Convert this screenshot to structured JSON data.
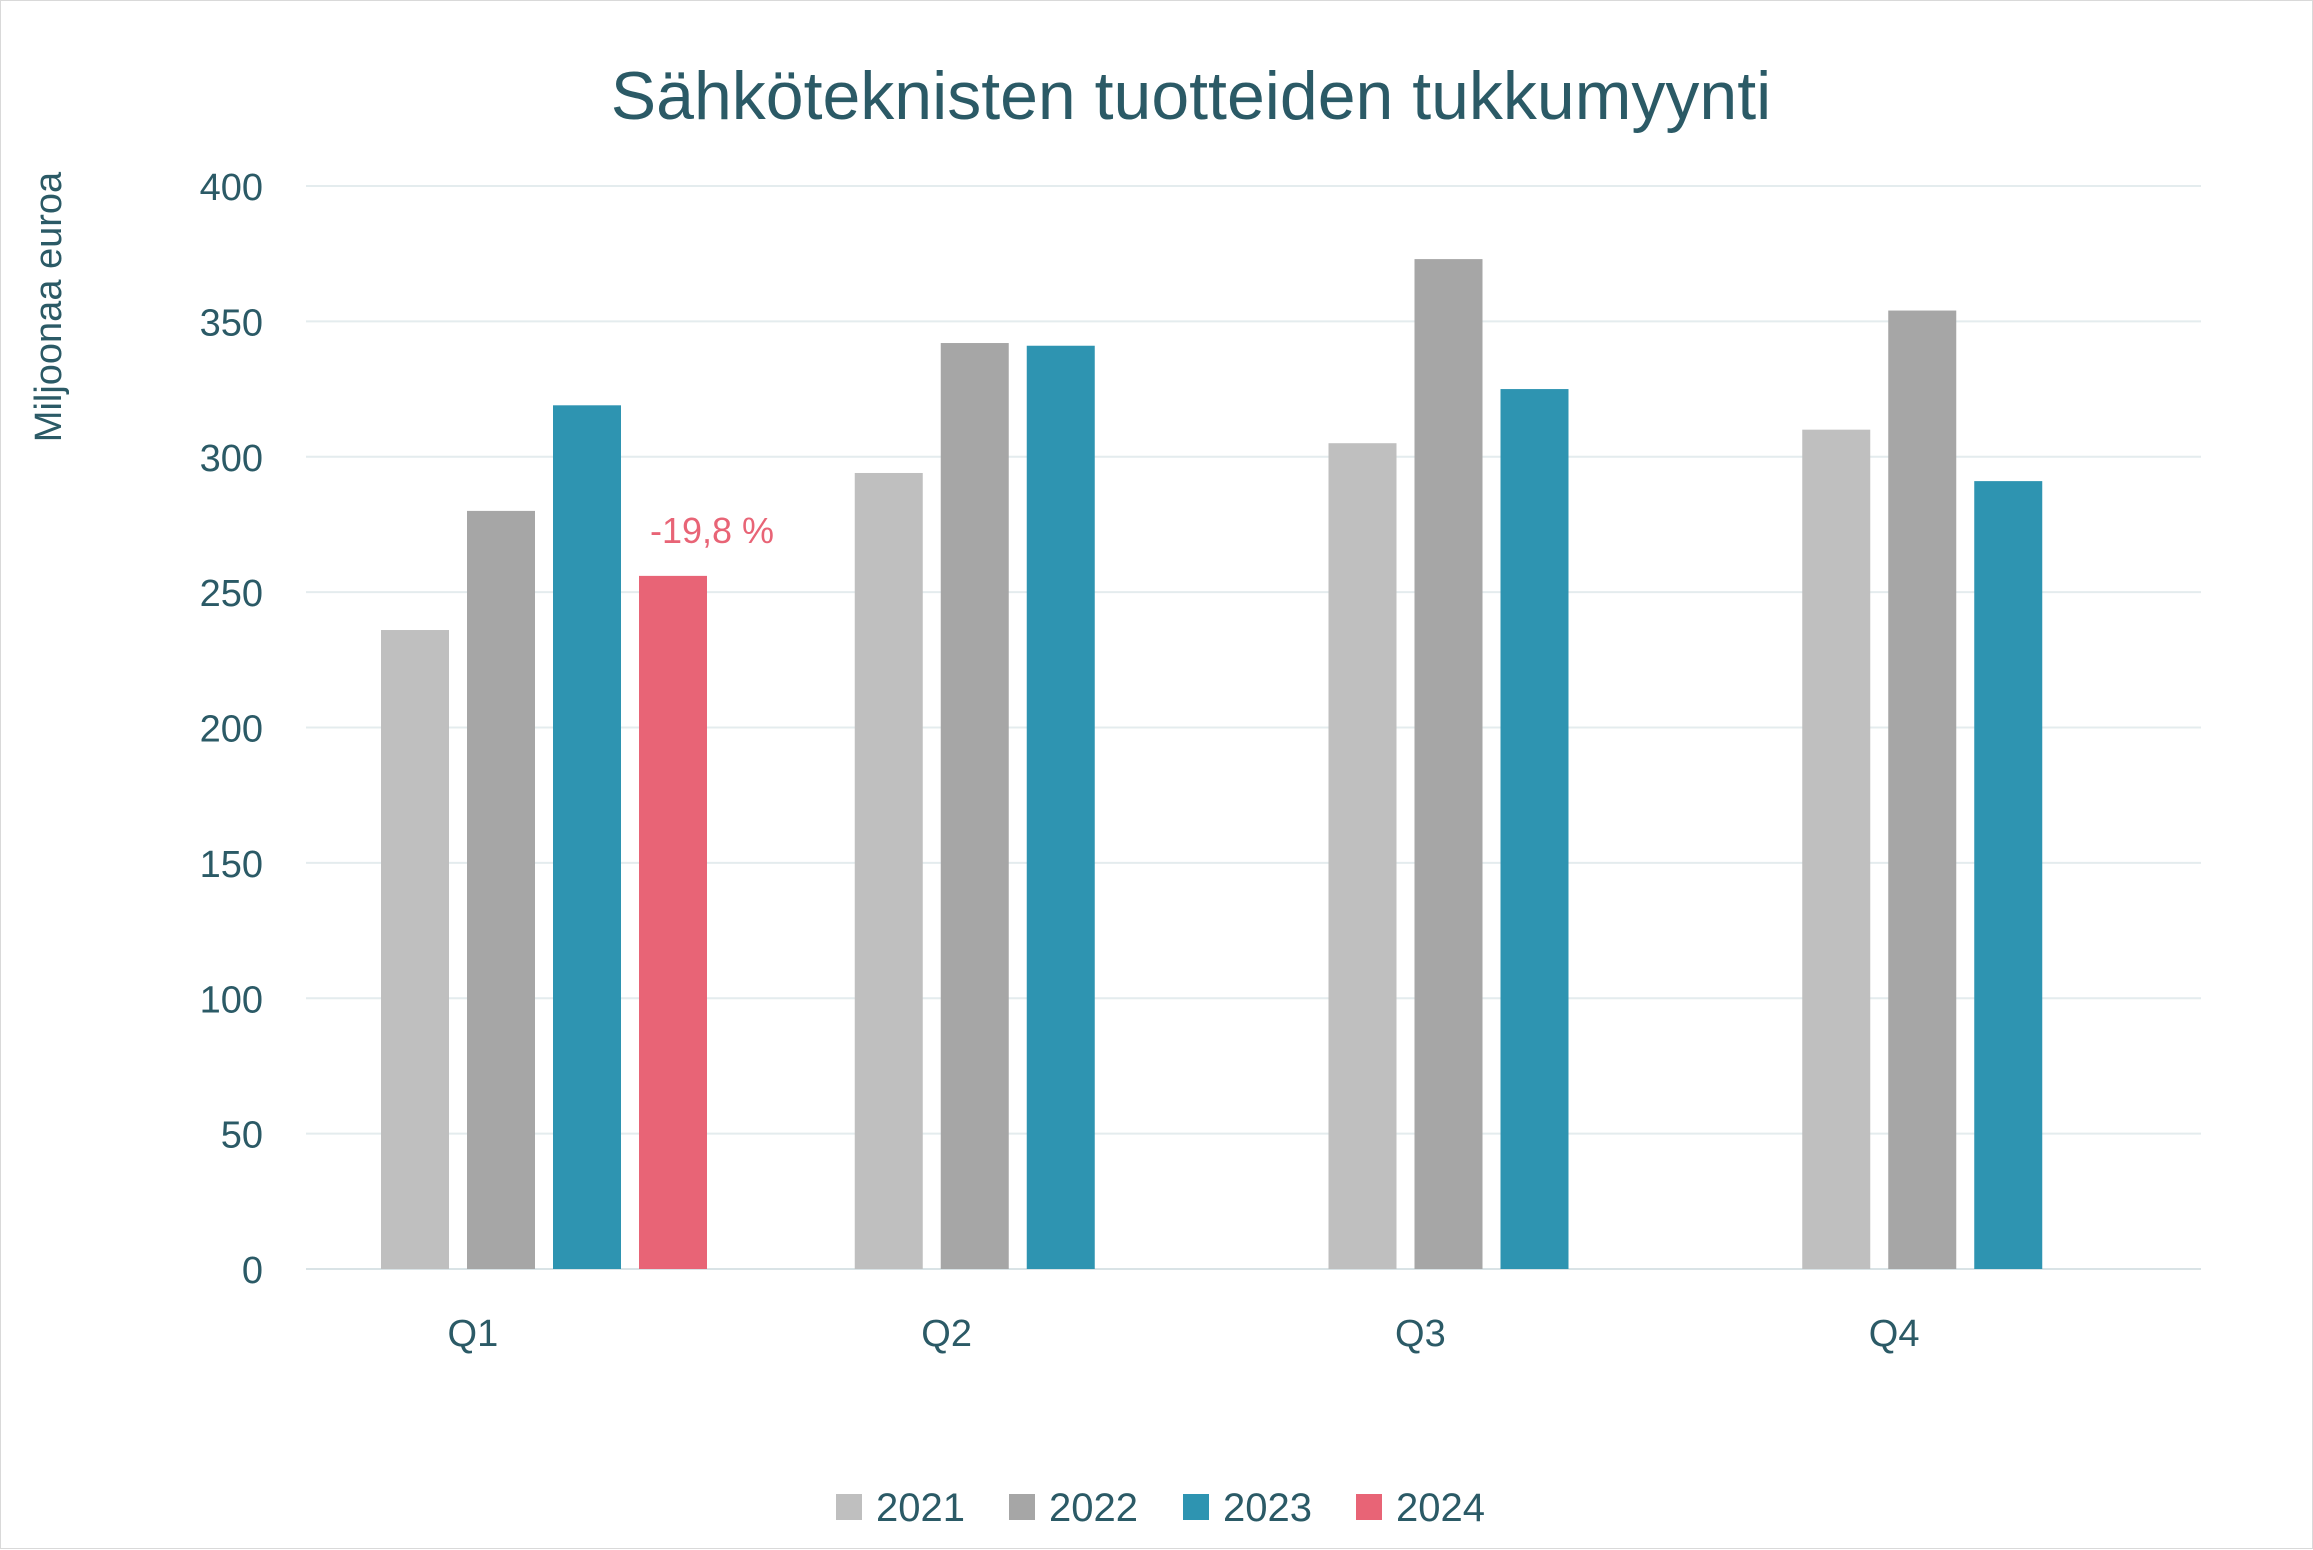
{
  "chart_data": {
    "type": "bar",
    "title": "Sähköteknisten tuotteiden tukkumyynti",
    "ylabel": "Miljoonaa euroa",
    "xlabel": "",
    "categories": [
      "Q1",
      "Q2",
      "Q3",
      "Q4"
    ],
    "ylim": [
      0,
      400
    ],
    "yticks": [
      "0",
      "50",
      "100",
      "150",
      "200",
      "250",
      "300",
      "350",
      "400"
    ],
    "grid": true,
    "legend_position": "bottom",
    "series": [
      {
        "name": "2021",
        "color": "#bfbfbf",
        "values": [
          236,
          294,
          305,
          310
        ]
      },
      {
        "name": "2022",
        "color": "#a6a6a6",
        "values": [
          280,
          342,
          373,
          354
        ]
      },
      {
        "name": "2023",
        "color": "#2e94b1",
        "values": [
          319,
          341,
          325,
          291
        ]
      },
      {
        "name": "2024",
        "color": "#e86476",
        "values": [
          256,
          null,
          null,
          null
        ]
      }
    ],
    "annotations": [
      {
        "category": "Q1",
        "series": "2024",
        "text": "-19,8 %",
        "color": "#e86476"
      }
    ]
  }
}
